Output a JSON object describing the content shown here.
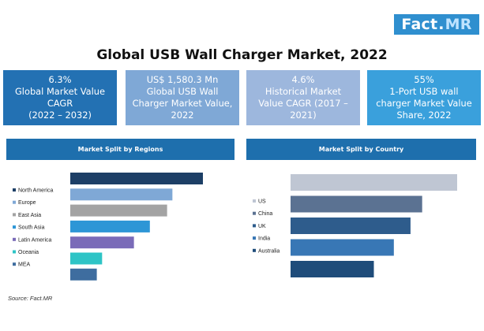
{
  "logo": {
    "brand": "Fact",
    "dot": ".",
    "suffix": "MR"
  },
  "title": "Global USB Wall Charger Market, 2022",
  "stats": [
    {
      "lines": [
        "6.3%",
        "Global Market Value",
        "CAGR",
        "(2022 – 2032)"
      ],
      "color": "#2371b3"
    },
    {
      "lines": [
        "US$ 1,580.3 Mn",
        "Global USB Wall",
        "Charger Market Value,",
        "2022"
      ],
      "color": "#7fa8d6"
    },
    {
      "lines": [
        "4.6%",
        "Historical Market",
        "Value CAGR (2017 –",
        "2021)"
      ],
      "color": "#9db7dd"
    },
    {
      "lines": [
        "55%",
        "1-Port USB wall",
        "charger Market Value",
        "Share, 2022"
      ],
      "color": "#3aa0dc"
    }
  ],
  "sections": {
    "left": "Market Split by Regions",
    "right": "Market Split by Country"
  },
  "source": "Source: Fact.MR",
  "chart_data": [
    {
      "type": "bar",
      "orientation": "horizontal",
      "title": "Market Split by Regions",
      "categories": [
        "North America",
        "Europe",
        "East Asia",
        "South Asia",
        "Latin America",
        "Oceania",
        "MEA"
      ],
      "values": [
        100,
        77,
        73,
        60,
        48,
        24,
        20
      ],
      "colors": [
        "#1d3f66",
        "#7fa8d6",
        "#a3a3a3",
        "#2d96d6",
        "#7a6bb8",
        "#2ec4c6",
        "#3e6d9f"
      ],
      "legend": "left"
    },
    {
      "type": "bar",
      "orientation": "horizontal",
      "title": "Market Split by Country",
      "categories": [
        "US",
        "China",
        "UK",
        "India",
        "Australia"
      ],
      "values": [
        100,
        79,
        72,
        62,
        50
      ],
      "colors": [
        "#bfc6d3",
        "#5b7292",
        "#2e5c8c",
        "#3877b5",
        "#1f4c7a"
      ],
      "legend": "left"
    }
  ]
}
